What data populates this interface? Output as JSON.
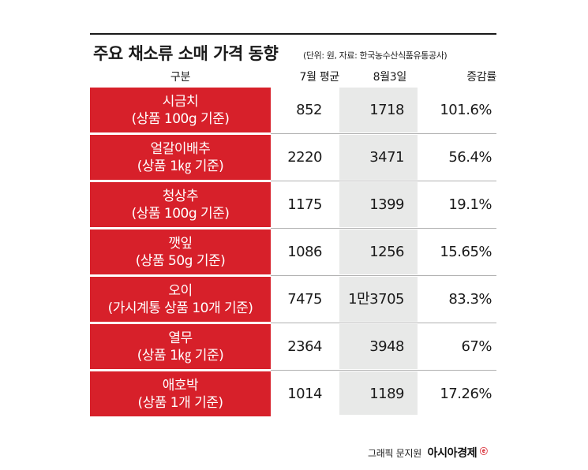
{
  "title": "주요 채소류 소매 가격 동향",
  "subtitle": "(단위: 원, 자료: 한국농수산식품유통공사)",
  "columns": {
    "category": "구분",
    "july_avg": "7월 평균",
    "aug3": "8월3일",
    "rate": "증감률"
  },
  "rows": [
    {
      "name": "시금치",
      "unit": "(상품 100g 기준)",
      "july_avg": "852",
      "aug3": "1718",
      "rate": "101.6%"
    },
    {
      "name": "얼갈이배추",
      "unit": "(상품 1㎏ 기준)",
      "july_avg": "2220",
      "aug3": "3471",
      "rate": "56.4%"
    },
    {
      "name": "청상추",
      "unit": "(상품 100g 기준)",
      "july_avg": "1175",
      "aug3": "1399",
      "rate": "19.1%"
    },
    {
      "name": "깻잎",
      "unit": "(상품 50g 기준)",
      "july_avg": "1086",
      "aug3": "1256",
      "rate": "15.65%"
    },
    {
      "name": "오이",
      "unit": "(가시계통 상품 10개 기준)",
      "july_avg": "7475",
      "aug3": "1만3705",
      "rate": "83.3%"
    },
    {
      "name": "열무",
      "unit": "(상품 1㎏ 기준)",
      "july_avg": "2364",
      "aug3": "3948",
      "rate": "67%"
    },
    {
      "name": "애호박",
      "unit": "(상품 1개 기준)",
      "july_avg": "1014",
      "aug3": "1189",
      "rate": "17.26%"
    }
  ],
  "credit": {
    "text": "그래픽 문지원",
    "brand": "아시아경제",
    "brand_mark": "ⓔ"
  },
  "colors": {
    "accent": "#d7202a",
    "band": "#e8e9e8"
  }
}
